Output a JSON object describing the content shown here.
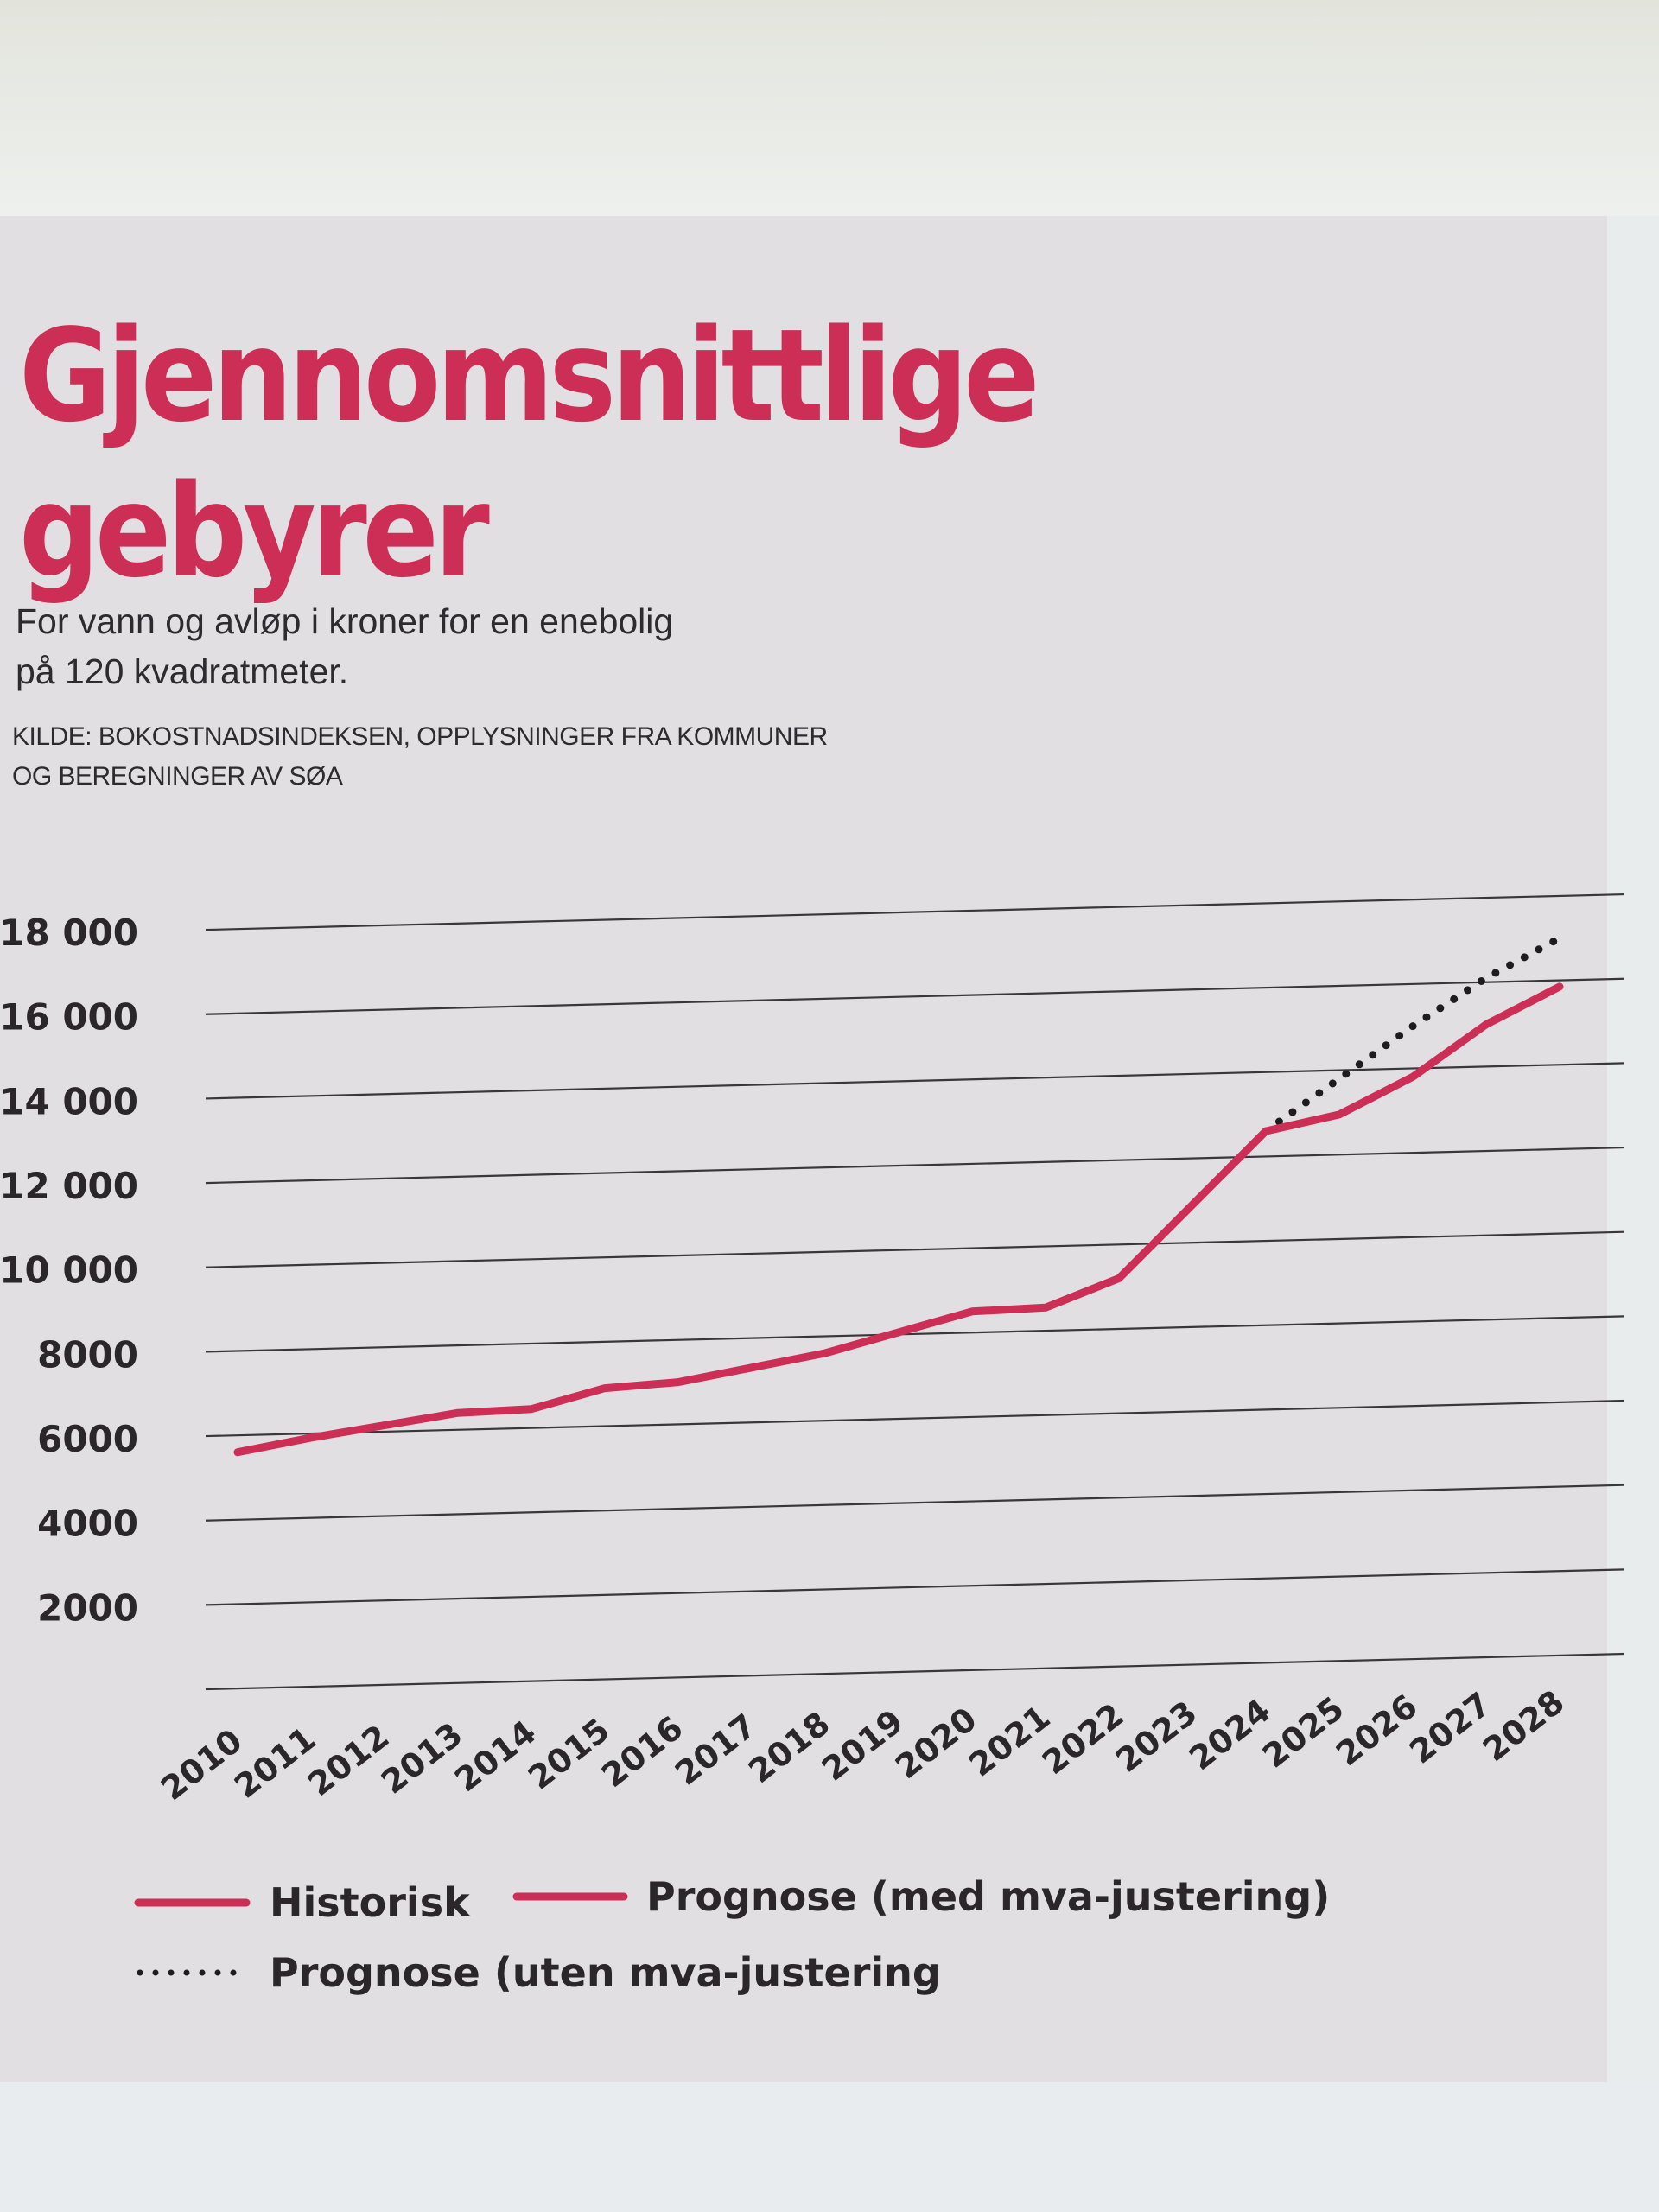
{
  "header": {
    "title": "Gjennomsnittlige\ngebyrer",
    "subtitle": "For vann og avløp i kroner for en enebolig\npå 120 kvadratmeter.",
    "source": "KILDE: BOKOSTNADSINDEKSEN, OPPLYSNINGER FRA KOMMUNER\nOG BEREGNINGER AV SØA"
  },
  "colors": {
    "historic": "#cc2e55",
    "forecast": "#cc2e55",
    "forecast_without_vat": "#1e1c1e",
    "title": "#cc2e55"
  },
  "chart_data": {
    "type": "line",
    "title": "Gjennomsnittlige gebyrer",
    "x": [
      "2010",
      "2011",
      "2012",
      "2013",
      "2014",
      "2015",
      "2016",
      "2017",
      "2018",
      "2019",
      "2020",
      "2021",
      "2022",
      "2023",
      "2024",
      "2025",
      "2026",
      "2027",
      "2028"
    ],
    "x_tick_labels": [
      "2010",
      "2011",
      "2012",
      "2013",
      "2014",
      "2015",
      "2016",
      "2017",
      "2018",
      "2019",
      "2020",
      "2021",
      "2022",
      "2023",
      "2024",
      "2025",
      "2026",
      "2027",
      "2028"
    ],
    "y_tick_labels": [
      "18 000",
      "16 000",
      "14 000",
      "12 000",
      "10 000",
      "8000",
      "6000",
      "4000",
      "2000"
    ],
    "y_ticks": [
      18000,
      16000,
      14000,
      12000,
      10000,
      8000,
      6000,
      4000,
      2000
    ],
    "ylim": [
      0,
      18800
    ],
    "grid": true,
    "legend_position": "bottom",
    "series": [
      {
        "name": "Historisk",
        "style": "solid",
        "x": [
          "2010",
          "2011",
          "2012",
          "2013",
          "2014",
          "2015",
          "2016",
          "2017",
          "2018",
          "2019",
          "2020",
          "2021",
          "2022",
          "2023",
          "2024"
        ],
        "values": [
          5600,
          5900,
          6150,
          6400,
          6450,
          6900,
          7000,
          7300,
          7600,
          8050,
          8500,
          8550,
          9200,
          10900,
          12600
        ]
      },
      {
        "name": "Prognose (med mva-justering)",
        "style": "solid",
        "x": [
          "2024",
          "2025",
          "2026",
          "2027",
          "2028"
        ],
        "values": [
          12600,
          12950,
          13800,
          15000,
          15850
        ]
      },
      {
        "name": "Prognose (uten mva-justering",
        "style": "dotted",
        "x": [
          "2024",
          "2025",
          "2026",
          "2027",
          "2028"
        ],
        "values": [
          12600,
          13800,
          15000,
          16100,
          17000
        ]
      }
    ]
  }
}
